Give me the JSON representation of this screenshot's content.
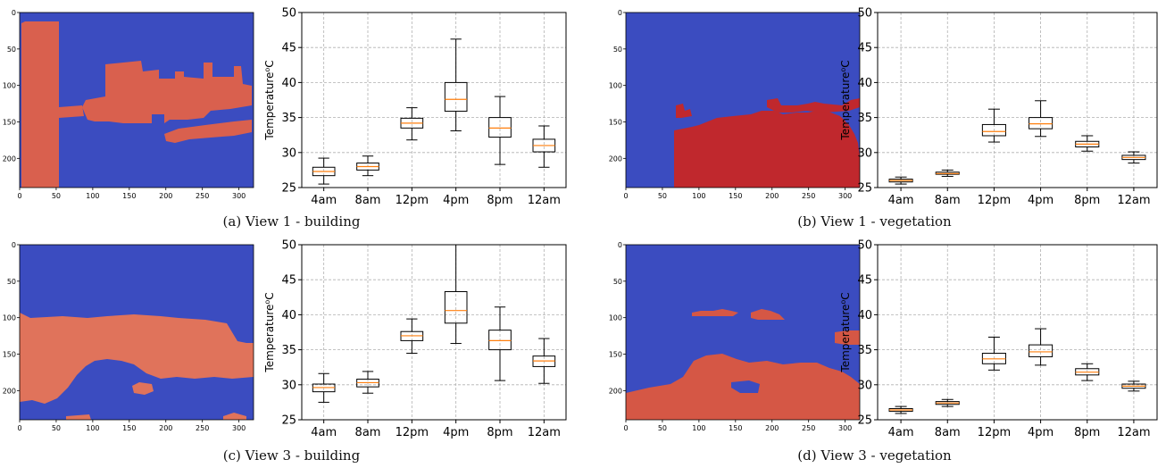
{
  "panels": [
    {
      "id": "a",
      "caption": "(a) View 1 - building",
      "image": {
        "xticks": [
          "0",
          "50",
          "100",
          "150",
          "200",
          "250",
          "300"
        ],
        "yticks": [
          "0",
          "50",
          "100",
          "150",
          "200"
        ],
        "colors": {
          "background": "#3b4cc0",
          "region": "#d9604e"
        }
      },
      "chart_data": {
        "type": "boxplot",
        "categories": [
          "4am",
          "8am",
          "12pm",
          "4pm",
          "8pm",
          "12am"
        ],
        "ylabel": "Temperature⁰C",
        "ylim": [
          25,
          50
        ],
        "yticks": [
          "25",
          "30",
          "35",
          "40",
          "45",
          "50"
        ],
        "boxes": [
          {
            "whislo": 25.5,
            "q1": 26.7,
            "med": 27.3,
            "q3": 27.9,
            "whishi": 29.2
          },
          {
            "whislo": 26.7,
            "q1": 27.5,
            "med": 28.0,
            "q3": 28.5,
            "whishi": 29.5
          },
          {
            "whislo": 31.8,
            "q1": 33.5,
            "med": 34.2,
            "q3": 34.9,
            "whishi": 36.4
          },
          {
            "whislo": 33.1,
            "q1": 35.9,
            "med": 37.6,
            "q3": 40.0,
            "whishi": 46.2
          },
          {
            "whislo": 28.3,
            "q1": 32.2,
            "med": 33.5,
            "q3": 35.0,
            "whishi": 38.0
          },
          {
            "whislo": 27.9,
            "q1": 30.1,
            "med": 31.0,
            "q3": 31.9,
            "whishi": 33.8
          }
        ]
      }
    },
    {
      "id": "b",
      "caption": "(b) View 1 - vegetation",
      "image": {
        "xticks": [
          "0",
          "50",
          "100",
          "150",
          "200",
          "250",
          "300"
        ],
        "yticks": [
          "0",
          "50",
          "100",
          "150",
          "200"
        ],
        "colors": {
          "background": "#3b4cc0",
          "region": "#c0282d"
        }
      },
      "chart_data": {
        "type": "boxplot",
        "categories": [
          "4am",
          "8am",
          "12pm",
          "4pm",
          "8pm",
          "12am"
        ],
        "ylabel": "Temperature⁰C",
        "ylim": [
          25,
          50
        ],
        "yticks": [
          "25",
          "30",
          "35",
          "40",
          "45",
          "50"
        ],
        "boxes": [
          {
            "whislo": 25.5,
            "q1": 25.8,
            "med": 26.0,
            "q3": 26.2,
            "whishi": 26.5
          },
          {
            "whislo": 26.6,
            "q1": 26.9,
            "med": 27.0,
            "q3": 27.2,
            "whishi": 27.5
          },
          {
            "whislo": 31.5,
            "q1": 32.4,
            "med": 33.0,
            "q3": 34.0,
            "whishi": 36.2
          },
          {
            "whislo": 32.3,
            "q1": 33.4,
            "med": 34.1,
            "q3": 35.0,
            "whishi": 37.4
          },
          {
            "whislo": 30.2,
            "q1": 30.8,
            "med": 31.2,
            "q3": 31.6,
            "whishi": 32.4
          },
          {
            "whislo": 28.5,
            "q1": 29.0,
            "med": 29.3,
            "q3": 29.6,
            "whishi": 30.1
          }
        ]
      }
    },
    {
      "id": "c",
      "caption": "(c) View 3 - building",
      "image": {
        "xticks": [
          "0",
          "50",
          "100",
          "150",
          "200",
          "250",
          "300"
        ],
        "yticks": [
          "0",
          "50",
          "100",
          "150",
          "200"
        ],
        "yticks_shown": [
          "0",
          "50",
          "100",
          "150",
          "200"
        ],
        "colors": {
          "background": "#3b4cc0",
          "region": "#e0735b"
        }
      },
      "chart_data": {
        "type": "boxplot",
        "categories": [
          "4am",
          "8am",
          "12pm",
          "4pm",
          "8pm",
          "12am"
        ],
        "ylabel": "Temperature⁰C",
        "ylim": [
          25,
          50
        ],
        "yticks": [
          "25",
          "30",
          "35",
          "40",
          "45",
          "50"
        ],
        "boxes": [
          {
            "whislo": 27.5,
            "q1": 29.0,
            "med": 29.6,
            "q3": 30.1,
            "whishi": 31.6
          },
          {
            "whislo": 28.8,
            "q1": 29.7,
            "med": 30.3,
            "q3": 30.8,
            "whishi": 31.9
          },
          {
            "whislo": 34.5,
            "q1": 36.3,
            "med": 37.0,
            "q3": 37.6,
            "whishi": 39.4
          },
          {
            "whislo": 35.9,
            "q1": 38.8,
            "med": 40.6,
            "q3": 43.3,
            "whishi": 50.0
          },
          {
            "whislo": 30.6,
            "q1": 35.0,
            "med": 36.3,
            "q3": 37.8,
            "whishi": 41.1
          },
          {
            "whislo": 30.2,
            "q1": 32.6,
            "med": 33.4,
            "q3": 34.1,
            "whishi": 36.6
          }
        ]
      }
    },
    {
      "id": "d",
      "caption": "(d) View 3 - vegetation",
      "image": {
        "xticks": [
          "0",
          "50",
          "100",
          "150",
          "200",
          "250",
          "300"
        ],
        "yticks": [
          "0",
          "50",
          "100",
          "150",
          "200"
        ],
        "colors": {
          "background": "#3b4cc0",
          "region": "#d55745"
        }
      },
      "chart_data": {
        "type": "boxplot",
        "categories": [
          "4am",
          "8am",
          "12pm",
          "4pm",
          "8pm",
          "12am"
        ],
        "ylabel": "Temperature⁰C",
        "ylim": [
          25,
          50
        ],
        "yticks": [
          "25",
          "30",
          "35",
          "40",
          "45",
          "50"
        ],
        "boxes": [
          {
            "whislo": 25.9,
            "q1": 26.2,
            "med": 26.4,
            "q3": 26.6,
            "whishi": 26.9
          },
          {
            "whislo": 26.9,
            "q1": 27.2,
            "med": 27.4,
            "q3": 27.6,
            "whishi": 27.9
          },
          {
            "whislo": 32.1,
            "q1": 33.0,
            "med": 33.7,
            "q3": 34.5,
            "whishi": 36.8
          },
          {
            "whislo": 32.8,
            "q1": 34.0,
            "med": 34.7,
            "q3": 35.7,
            "whishi": 38.0
          },
          {
            "whislo": 30.6,
            "q1": 31.4,
            "med": 31.8,
            "q3": 32.3,
            "whishi": 33.0
          },
          {
            "whislo": 29.1,
            "q1": 29.5,
            "med": 29.8,
            "q3": 30.1,
            "whishi": 30.5
          }
        ]
      }
    }
  ]
}
